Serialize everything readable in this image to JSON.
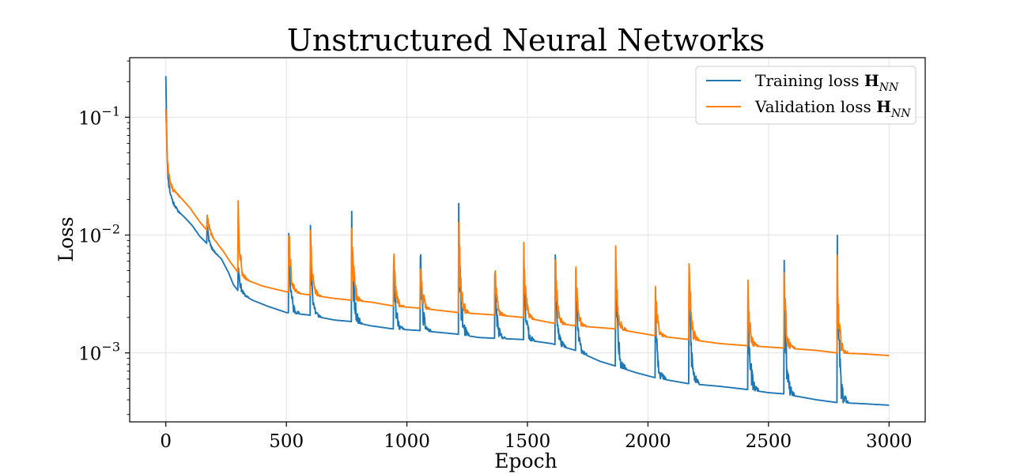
{
  "chart_data": {
    "type": "line",
    "title": "Unstructured Neural Networks",
    "xlabel": "Epoch",
    "ylabel": "Loss",
    "xlim": [
      -150,
      3150
    ],
    "ylim": [
      0.00026,
      0.32
    ],
    "yscale": "log",
    "grid": true,
    "legend_position": "top-right",
    "x_ticks": [
      0,
      500,
      1000,
      1500,
      2000,
      2500,
      3000
    ],
    "x_tick_labels": [
      "0",
      "500",
      "1000",
      "1500",
      "2000",
      "2500",
      "3000"
    ],
    "y_ticks": [
      0.001,
      0.01,
      0.1
    ],
    "y_tick_labels": [
      {
        "base": "10",
        "exp": "−3"
      },
      {
        "base": "10",
        "exp": "−2"
      },
      {
        "base": "10",
        "exp": "−1"
      }
    ],
    "restart_epochs": [
      170,
      300,
      510,
      600,
      770,
      945,
      1055,
      1215,
      1365,
      1485,
      1615,
      1700,
      1865,
      2030,
      2170,
      2415,
      2565,
      2785
    ],
    "series": [
      {
        "name": "Training loss",
        "name_math": "H",
        "name_sub": "NN",
        "color": "#1f77b4",
        "spike_peaks": [
          0.012,
          0.0055,
          0.0085,
          0.008,
          0.0125,
          0.0055,
          0.007,
          0.011,
          0.0042,
          0.0062,
          0.0056,
          0.0044,
          0.0062,
          0.0034,
          0.0052,
          0.0029,
          0.0034,
          0.0052
        ],
        "points": [
          [
            0,
            0.24
          ],
          [
            3,
            0.09
          ],
          [
            6,
            0.04
          ],
          [
            10,
            0.03
          ],
          [
            15,
            0.025
          ],
          [
            20,
            0.022
          ],
          [
            30,
            0.019
          ],
          [
            50,
            0.016
          ],
          [
            80,
            0.014
          ],
          [
            110,
            0.012
          ],
          [
            140,
            0.0098
          ],
          [
            170,
            0.0085
          ],
          [
            200,
            0.0072
          ],
          [
            230,
            0.0063
          ],
          [
            260,
            0.0048
          ],
          [
            280,
            0.0038
          ],
          [
            298,
            0.0034
          ],
          [
            320,
            0.0031
          ],
          [
            360,
            0.0028
          ],
          [
            420,
            0.0025
          ],
          [
            500,
            0.0022
          ],
          [
            590,
            0.0021
          ],
          [
            700,
            0.0019
          ],
          [
            765,
            0.00185
          ],
          [
            850,
            0.0017
          ],
          [
            940,
            0.0016
          ],
          [
            1050,
            0.00155
          ],
          [
            1200,
            0.00145
          ],
          [
            1300,
            0.00135
          ],
          [
            1480,
            0.0013
          ],
          [
            1600,
            0.0012
          ],
          [
            1700,
            0.00105
          ],
          [
            1800,
            0.00085
          ],
          [
            1860,
            0.00078
          ],
          [
            1950,
            0.00068
          ],
          [
            2025,
            0.00062
          ],
          [
            2100,
            0.00058
          ],
          [
            2165,
            0.00055
          ],
          [
            2300,
            0.00052
          ],
          [
            2410,
            0.00049
          ],
          [
            2500,
            0.00046
          ],
          [
            2560,
            0.00045
          ],
          [
            2700,
            0.0004
          ],
          [
            2780,
            0.00038
          ],
          [
            2900,
            0.00037
          ],
          [
            3000,
            0.00036
          ]
        ]
      },
      {
        "name": "Validation loss",
        "name_math": "H",
        "name_sub": "NN",
        "color": "#ff7f0e",
        "spike_peaks": [
          0.0155,
          0.016,
          0.0105,
          0.009,
          0.0132,
          0.0062,
          0.0073,
          0.0122,
          0.0047,
          0.0067,
          0.006,
          0.0048,
          0.0071,
          0.0037,
          0.0057,
          0.0031,
          0.0038,
          0.0056
        ],
        "points": [
          [
            0,
            0.125
          ],
          [
            3,
            0.08
          ],
          [
            6,
            0.045
          ],
          [
            10,
            0.035
          ],
          [
            15,
            0.03
          ],
          [
            20,
            0.027
          ],
          [
            30,
            0.024
          ],
          [
            60,
            0.021
          ],
          [
            100,
            0.017
          ],
          [
            140,
            0.013
          ],
          [
            170,
            0.011
          ],
          [
            200,
            0.0092
          ],
          [
            240,
            0.0072
          ],
          [
            270,
            0.0058
          ],
          [
            300,
            0.0048
          ],
          [
            330,
            0.0042
          ],
          [
            400,
            0.0037
          ],
          [
            500,
            0.0033
          ],
          [
            600,
            0.0031
          ],
          [
            700,
            0.0029
          ],
          [
            770,
            0.0028
          ],
          [
            850,
            0.0027
          ],
          [
            945,
            0.0025
          ],
          [
            1050,
            0.0024
          ],
          [
            1215,
            0.0022
          ],
          [
            1365,
            0.0021
          ],
          [
            1485,
            0.002
          ],
          [
            1600,
            0.0018
          ],
          [
            1700,
            0.0017
          ],
          [
            1865,
            0.0016
          ],
          [
            2030,
            0.0014
          ],
          [
            2170,
            0.0013
          ],
          [
            2300,
            0.0012
          ],
          [
            2415,
            0.00115
          ],
          [
            2565,
            0.0011
          ],
          [
            2700,
            0.00105
          ],
          [
            2785,
            0.001
          ],
          [
            2900,
            0.00098
          ],
          [
            3000,
            0.00095
          ]
        ]
      }
    ]
  }
}
